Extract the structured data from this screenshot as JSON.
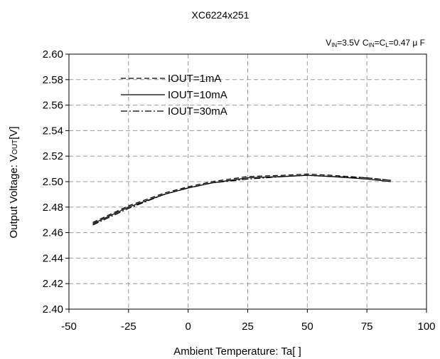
{
  "chart_data": {
    "type": "line",
    "title": "XC6224x251",
    "conditions": {
      "vin_symbol": "V",
      "vin_sub": "IN",
      "vin_value": "=3.5V",
      "cin_symbol": "C",
      "cin_sub": "IN",
      "eq": "=",
      "cl_symbol": "C",
      "cl_sub": "L",
      "cap_value": "=0.47 μ F"
    },
    "ylabel": {
      "prefix": "Output Voltage: V",
      "sub": "OUT",
      "suffix": "[V]"
    },
    "xlabel": "Ambient Temperature: Ta[   ]",
    "xlim": [
      -50,
      100
    ],
    "ylim": [
      2.4,
      2.6
    ],
    "xticks": [
      "-50",
      "-25",
      "0",
      "25",
      "50",
      "75",
      "100"
    ],
    "yticks": [
      "2.40",
      "2.42",
      "2.44",
      "2.46",
      "2.48",
      "2.50",
      "2.52",
      "2.54",
      "2.56",
      "2.58",
      "2.60"
    ],
    "grid": true,
    "legend_position": "top-left",
    "series": [
      {
        "name": "IOUT=1mA",
        "dash": "dashed",
        "x": [
          -40,
          -25,
          -10,
          0,
          10,
          25,
          40,
          50,
          60,
          75,
          85
        ],
        "y": [
          2.468,
          2.481,
          2.491,
          2.496,
          2.5,
          2.504,
          2.505,
          2.506,
          2.505,
          2.503,
          2.501
        ]
      },
      {
        "name": "IOUT=10mA",
        "dash": "solid",
        "x": [
          -40,
          -25,
          -10,
          0,
          10,
          25,
          40,
          50,
          60,
          75,
          85
        ],
        "y": [
          2.467,
          2.48,
          2.49,
          2.495,
          2.499,
          2.503,
          2.504,
          2.505,
          2.504,
          2.502,
          2.5
        ]
      },
      {
        "name": "IOUT=30mA",
        "dash": "dashdot",
        "x": [
          -40,
          -25,
          -10,
          0,
          10,
          25,
          40,
          50,
          60,
          75,
          85
        ],
        "y": [
          2.466,
          2.479,
          2.49,
          2.495,
          2.499,
          2.502,
          2.504,
          2.505,
          2.504,
          2.503,
          2.501
        ]
      }
    ]
  }
}
